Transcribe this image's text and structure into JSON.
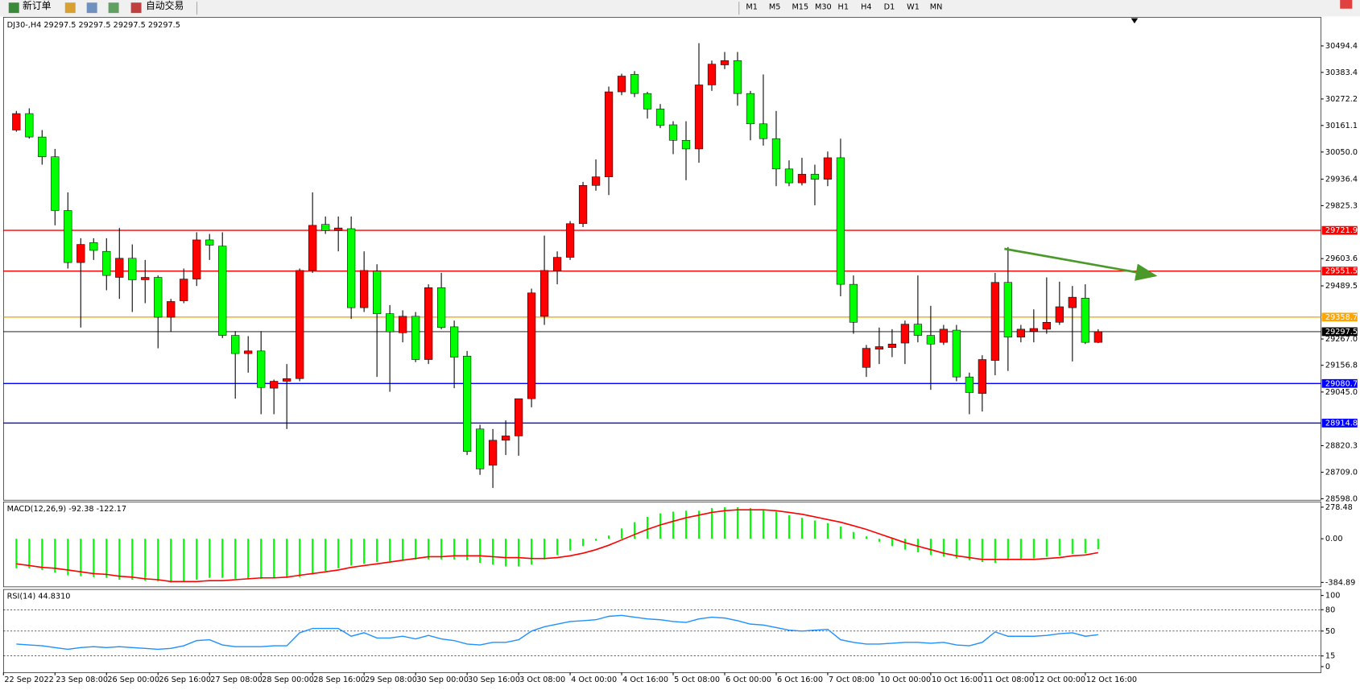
{
  "toolbar": {
    "buttons": [
      "新订单",
      "自动交易"
    ],
    "timeframes": [
      "M1",
      "M5",
      "M15",
      "M30",
      "H1",
      "H4",
      "D1",
      "W1",
      "MN"
    ]
  },
  "chart_data": [
    {
      "type": "candlestick",
      "title": "DJ30-,H4  29297.5 29297.5 29297.5 29297.5",
      "up_color": "#ff0000",
      "down_color": "#00ff00",
      "open": [
        30142,
        30211,
        30113,
        30030,
        29805,
        29587,
        29671,
        29634,
        29525,
        29605,
        29515,
        29525,
        29358,
        29427,
        29518,
        29682,
        29656,
        29282,
        29206,
        29217,
        29061,
        29090,
        29101,
        29554,
        29747,
        29721,
        29729,
        29398,
        29551,
        29373,
        29293,
        29362,
        29181,
        29482,
        29318,
        29195,
        28890,
        28738,
        28843,
        28861,
        29017,
        29362,
        29551,
        29609,
        29750,
        29910,
        29946,
        30302,
        30375,
        30295,
        30230,
        30164,
        30099,
        30063,
        30331,
        30415,
        30433,
        30295,
        30168,
        30106,
        29979,
        29921,
        29957,
        29936,
        30026,
        29496,
        29148,
        29224,
        29231,
        29250,
        29329,
        29282,
        29253,
        29304,
        29108,
        29039,
        29177,
        29504,
        29275,
        29300,
        29308,
        29337,
        29398,
        29438,
        29253
      ],
      "high": [
        30222,
        30233,
        30142,
        30063,
        29881,
        29689,
        29689,
        29689,
        29732,
        29663,
        29598,
        29533,
        29435,
        29562,
        29714,
        29707,
        29714,
        29300,
        29279,
        29300,
        29097,
        29162,
        29562,
        29881,
        29780,
        29780,
        29780,
        29634,
        29580,
        29409,
        29387,
        29380,
        29496,
        29544,
        29344,
        29217,
        28908,
        28890,
        28926,
        29017,
        29478,
        29700,
        29634,
        29761,
        29925,
        30019,
        30324,
        30378,
        30389,
        30302,
        30251,
        30179,
        30179,
        30506,
        30433,
        30469,
        30469,
        30306,
        30375,
        30222,
        30015,
        30026,
        29997,
        30052,
        30106,
        29533,
        29242,
        29315,
        29308,
        29344,
        29533,
        29406,
        29326,
        29326,
        29126,
        29199,
        29544,
        29652,
        29326,
        29391,
        29525,
        29507,
        29489,
        29496,
        29308
      ],
      "low": [
        30135,
        30106,
        29997,
        29743,
        29562,
        29315,
        29598,
        29471,
        29435,
        29380,
        29417,
        29228,
        29297,
        29417,
        29489,
        29598,
        29271,
        29017,
        29126,
        28952,
        28952,
        28890,
        29090,
        29544,
        29707,
        29634,
        29351,
        29380,
        29108,
        29046,
        29253,
        29170,
        29162,
        29308,
        29061,
        28781,
        28698,
        28643,
        28781,
        28778,
        28981,
        29326,
        29496,
        29598,
        29736,
        29888,
        29870,
        30288,
        30280,
        30190,
        30150,
        30041,
        29932,
        30005,
        30306,
        30397,
        30244,
        30099,
        30077,
        29907,
        29907,
        29910,
        29827,
        29907,
        29446,
        29289,
        29108,
        29162,
        29191,
        29162,
        29253,
        29054,
        29242,
        29090,
        28952,
        28963,
        29115,
        29133,
        29253,
        29253,
        29289,
        29326,
        29173,
        29246,
        29250
      ],
      "close": [
        30211,
        30113,
        30030,
        29805,
        29587,
        29663,
        29638,
        29533,
        29605,
        29515,
        29525,
        29358,
        29424,
        29518,
        29682,
        29660,
        29282,
        29206,
        29217,
        29064,
        29090,
        29101,
        29554,
        29743,
        29721,
        29732,
        29398,
        29554,
        29373,
        29297,
        29362,
        29181,
        29482,
        29315,
        29191,
        28796,
        28723,
        28843,
        28861,
        29017,
        29460,
        29554,
        29609,
        29750,
        29910,
        29946,
        30302,
        30368,
        30295,
        30230,
        30161,
        30099,
        30063,
        30331,
        30418,
        30433,
        30295,
        30168,
        30106,
        29979,
        29921,
        29957,
        29936,
        30026,
        29496,
        29337,
        29228,
        29235,
        29246,
        29329,
        29282,
        29246,
        29308,
        29108,
        29043,
        29181,
        29504,
        29275,
        29308,
        29311,
        29337,
        29402,
        29442,
        29253,
        29297.5
      ],
      "xlim": [
        -1,
        101.3
      ],
      "ylim": [
        28592,
        30614
      ],
      "yticks": [
        30494.4,
        30383.4,
        30272.2,
        30161.1,
        {
          "value": 30050,
          "label": "30050.0"
        },
        29936.4,
        29825.3,
        29603.6,
        29489.5,
        {
          "value": 29267,
          "label": "29267.0"
        },
        29156.8,
        {
          "value": 29045,
          "label": "29045.0"
        },
        28820.3,
        {
          "value": 28709,
          "label": "28709.0"
        },
        {
          "value": 28598,
          "label": "28598.0"
        }
      ],
      "xticks": [
        {
          "value": -1,
          "label": "22 Sep 2022"
        },
        {
          "value": 3,
          "label": "23 Sep 08:00"
        },
        {
          "value": 7,
          "label": "26 Sep 00:00"
        },
        {
          "value": 11,
          "label": "26 Sep 16:00"
        },
        {
          "value": 15,
          "label": "27 Sep 08:00"
        },
        {
          "value": 19,
          "label": "28 Sep 00:00"
        },
        {
          "value": 23,
          "label": "28 Sep 16:00"
        },
        {
          "value": 27,
          "label": "29 Sep 08:00"
        },
        {
          "value": 31,
          "label": "30 Sep 00:00"
        },
        {
          "value": 35,
          "label": "30 Sep 16:00"
        },
        {
          "value": 39,
          "label": "3 Oct 08:00"
        },
        {
          "value": 43,
          "label": "4 Oct 00:00"
        },
        {
          "value": 47,
          "label": "4 Oct 16:00"
        },
        {
          "value": 51,
          "label": "5 Oct 08:00"
        },
        {
          "value": 55,
          "label": "6 Oct 00:00"
        },
        {
          "value": 59,
          "label": "6 Oct 16:00"
        },
        {
          "value": 63,
          "label": "7 Oct 08:00"
        },
        {
          "value": 67,
          "label": "10 Oct 00:00"
        },
        {
          "value": 71,
          "label": "10 Oct 16:00"
        },
        {
          "value": 75,
          "label": "11 Oct 08:00"
        },
        {
          "value": 79,
          "label": "12 Oct 00:00"
        },
        {
          "value": 83,
          "label": "12 Oct 16:00"
        }
      ],
      "levels": [
        {
          "value": 29721.9,
          "color": "#ff0000"
        },
        {
          "value": 29551.5,
          "color": "#ff0000"
        },
        {
          "value": 29358.7,
          "color": "#ffa500"
        },
        {
          "value": 29297.5,
          "color": "#000000"
        },
        {
          "value": 29080.7,
          "color": "#0000ff"
        },
        {
          "value": 28914.8,
          "color": "#0000ff"
        }
      ]
    },
    {
      "type": "macd",
      "title": "MACD(12,26,9) -92.38 -122.17",
      "ylim": [
        -424,
        325
      ],
      "yticks": [
        278.48,
        {
          "value": 0,
          "label": "0.00"
        },
        -384.89
      ],
      "histogram": {
        "color": "#00ff00",
        "values": [
          -260,
          -260,
          -275,
          -299,
          -322,
          -330,
          -338,
          -345,
          -361,
          -361,
          -369,
          -377,
          -384.89,
          -377,
          -361,
          -345,
          -345,
          -353,
          -353,
          -353,
          -345,
          -345,
          -338,
          -314,
          -283,
          -260,
          -236,
          -221,
          -205,
          -197,
          -189,
          -182,
          -182,
          -182,
          -182,
          -189,
          -213,
          -228,
          -244,
          -244,
          -228,
          -182,
          -143,
          -104,
          -65,
          -18,
          29,
          91,
          146,
          193,
          224,
          239,
          247,
          247,
          271,
          278.48,
          278,
          271,
          255,
          239,
          208,
          185,
          161,
          138,
          107,
          60,
          21,
          -26,
          -65,
          -96,
          -119,
          -143,
          -158,
          -174,
          -189,
          -205,
          -213,
          -189,
          -182,
          -174,
          -158,
          -150,
          -135,
          -127,
          -92.38
        ]
      },
      "signal": {
        "color": "#ff0000",
        "values": [
          -221,
          -236,
          -252,
          -260,
          -275,
          -291,
          -307,
          -314,
          -330,
          -338,
          -353,
          -361,
          -377,
          -377,
          -377,
          -369,
          -369,
          -361,
          -353,
          -345,
          -345,
          -338,
          -322,
          -307,
          -291,
          -275,
          -252,
          -236,
          -221,
          -205,
          -189,
          -174,
          -158,
          -158,
          -150,
          -150,
          -150,
          -158,
          -166,
          -166,
          -174,
          -174,
          -166,
          -150,
          -127,
          -96,
          -57,
          -10,
          37,
          83,
          122,
          154,
          185,
          208,
          232,
          247,
          255,
          255,
          255,
          247,
          232,
          216,
          193,
          169,
          146,
          115,
          83,
          44,
          5,
          -34,
          -65,
          -96,
          -127,
          -150,
          -166,
          -182,
          -182,
          -182,
          -182,
          -182,
          -174,
          -166,
          -150,
          -143,
          -122.17
        ]
      }
    },
    {
      "type": "rsi",
      "title": "RSI(14) 44.8310",
      "color": "#1e90ff",
      "ylim": [
        -8.5,
        108.5
      ],
      "yticks": [
        100,
        80,
        50,
        15,
        0
      ],
      "levels": [
        80,
        50,
        15
      ],
      "values": [
        31.7,
        30.5,
        29.3,
        26.8,
        24.4,
        26.8,
        28.0,
        26.8,
        28.0,
        26.8,
        25.6,
        24.4,
        25.6,
        29.3,
        36.6,
        37.8,
        30.5,
        28.0,
        28.0,
        28.0,
        29.3,
        29.3,
        47.6,
        53.7,
        53.7,
        53.7,
        42.7,
        47.6,
        40.2,
        40.2,
        42.7,
        39.0,
        43.9,
        39.0,
        36.6,
        31.7,
        30.5,
        34.1,
        34.1,
        37.8,
        50.0,
        56.1,
        59.8,
        63.4,
        64.6,
        65.9,
        70.7,
        72.0,
        69.5,
        67.1,
        65.9,
        63.4,
        62.2,
        67.1,
        69.5,
        68.3,
        64.6,
        59.8,
        58.5,
        54.9,
        51.2,
        50.0,
        51.2,
        52.4,
        37.8,
        34.1,
        31.7,
        31.7,
        32.9,
        34.1,
        34.1,
        32.9,
        34.1,
        30.5,
        29.3,
        34.1,
        48.8,
        42.7,
        42.7,
        42.7,
        43.9,
        46.3,
        47.6,
        42.7,
        44.831
      ]
    }
  ]
}
